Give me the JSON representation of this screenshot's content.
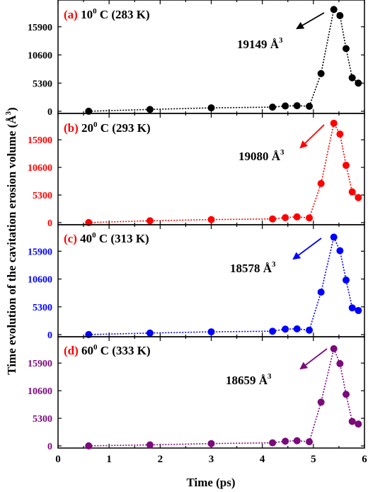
{
  "figure": {
    "ylabel": "Time evolution of the cavitation erosion volume (Å³)",
    "ylabel_main": "Time evolution of the cavitation erosion volume (",
    "ylabel_unit": "Å",
    "ylabel_exp": "3",
    "ylabel_close": ")",
    "xlabel": "Time (ps)"
  },
  "chart_data": [
    {
      "type": "scatter",
      "panel_tag": "(a)",
      "temp_num": "10",
      "temp_deg": "0",
      "temp_rest": " C (283 K)",
      "annotation_value": "19149 Å",
      "annotation_exp": "3",
      "color": "#000000",
      "xlabel": "Time (ps)",
      "xlim": [
        0,
        6
      ],
      "ylim": [
        0,
        19600
      ],
      "yticks": [
        "0",
        "5300",
        "10600",
        "15900"
      ],
      "series": [
        {
          "x": [
            0.6,
            1.8,
            3.0,
            4.2,
            4.45,
            4.68,
            4.92,
            5.15,
            5.4,
            5.52,
            5.64,
            5.76,
            5.88
          ],
          "y": [
            10,
            350,
            650,
            780,
            1000,
            1050,
            950,
            7100,
            19149,
            18000,
            11800,
            6300,
            5300
          ]
        }
      ]
    },
    {
      "type": "scatter",
      "panel_tag": "(b)",
      "temp_num": "20",
      "temp_deg": "0",
      "temp_rest": " C (293 K)",
      "annotation_value": "19080 Å",
      "annotation_exp": "3",
      "color": "#ff0000",
      "xlabel": "Time (ps)",
      "xlim": [
        0,
        6
      ],
      "ylim": [
        0,
        19600
      ],
      "yticks": [
        "0",
        "5300",
        "10600",
        "15900"
      ],
      "series": [
        {
          "x": [
            0.6,
            1.8,
            3.0,
            4.2,
            4.45,
            4.68,
            4.92,
            5.15,
            5.4,
            5.52,
            5.64,
            5.76,
            5.88
          ],
          "y": [
            10,
            350,
            580,
            700,
            950,
            1100,
            900,
            7500,
            19080,
            17000,
            11000,
            5900,
            4800
          ]
        }
      ]
    },
    {
      "type": "scatter",
      "panel_tag": "(c)",
      "temp_num": "40",
      "temp_deg": "0",
      "temp_rest": " C (313 K)",
      "annotation_value": "18578 Å",
      "annotation_exp": "3",
      "color": "#0000ff",
      "xlabel": "Time (ps)",
      "xlim": [
        0,
        6
      ],
      "ylim": [
        0,
        19600
      ],
      "yticks": [
        "0",
        "5300",
        "10600",
        "15900"
      ],
      "series": [
        {
          "x": [
            0.6,
            1.8,
            3.0,
            4.2,
            4.45,
            4.68,
            4.92,
            5.15,
            5.4,
            5.52,
            5.64,
            5.76,
            5.88
          ],
          "y": [
            10,
            300,
            530,
            650,
            1050,
            1100,
            850,
            8100,
            18578,
            16000,
            10400,
            5100,
            4600
          ]
        }
      ]
    },
    {
      "type": "scatter",
      "panel_tag": "(d)",
      "temp_num": "60",
      "temp_deg": "0",
      "temp_rest": " C (333 K)",
      "annotation_value": "18659 Å",
      "annotation_exp": "3",
      "color": "#7b0a7b",
      "xlabel": "Time (ps)",
      "xlim": [
        0,
        6
      ],
      "ylim": [
        0,
        19600
      ],
      "yticks": [
        "0",
        "5300",
        "10600",
        "15900"
      ],
      "series": [
        {
          "x": [
            0.6,
            1.8,
            3.0,
            4.2,
            4.45,
            4.68,
            4.92,
            5.15,
            5.4,
            5.52,
            5.64,
            5.76,
            5.88
          ],
          "y": [
            10,
            200,
            450,
            600,
            900,
            1000,
            800,
            8400,
            18659,
            15800,
            9900,
            4700,
            4200
          ]
        }
      ]
    }
  ],
  "xticks": [
    "0",
    "1",
    "2",
    "3",
    "4",
    "5",
    "6"
  ]
}
